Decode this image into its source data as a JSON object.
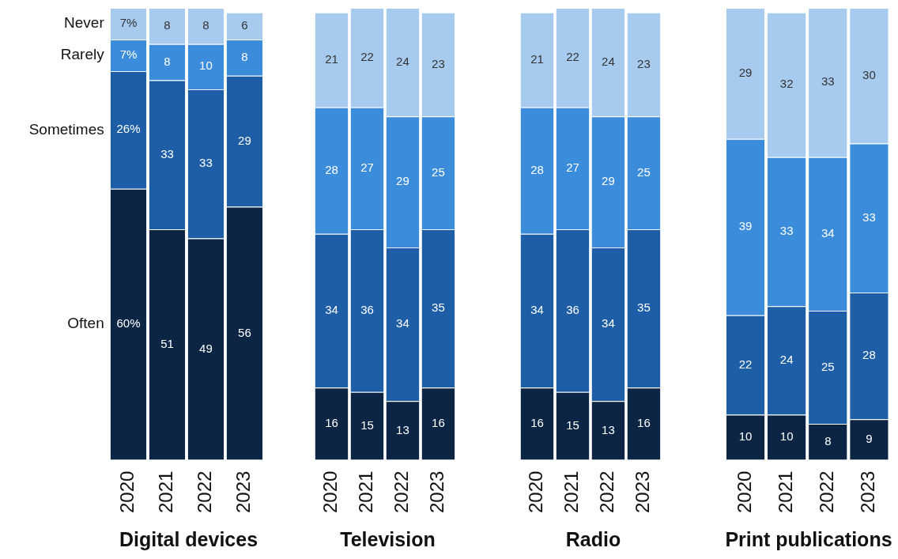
{
  "chart_data": [
    {
      "type": "bar",
      "stacked": true,
      "title": "Digital devices",
      "categories": [
        "2020",
        "2021",
        "2022",
        "2023"
      ],
      "series": [
        {
          "name": "Often",
          "color": "#0c2545",
          "values": [
            60,
            51,
            49,
            56
          ],
          "value_labels": [
            "60%",
            "51",
            "49",
            "56"
          ]
        },
        {
          "name": "Sometimes",
          "color": "#1d5ea6",
          "values": [
            26,
            33,
            33,
            29
          ],
          "value_labels": [
            "26%",
            "33",
            "33",
            "29"
          ]
        },
        {
          "name": "Rarely",
          "color": "#3b8ddb",
          "values": [
            7,
            8,
            10,
            8
          ],
          "value_labels": [
            "7%",
            "8",
            "10",
            "8"
          ]
        },
        {
          "name": "Never",
          "color": "#a6cbef",
          "values": [
            7,
            8,
            8,
            6
          ],
          "value_labels": [
            "7%",
            "8",
            "8",
            "6"
          ]
        }
      ]
    },
    {
      "type": "bar",
      "stacked": true,
      "title": "Television",
      "categories": [
        "2020",
        "2021",
        "2022",
        "2023"
      ],
      "data_labels": true,
      "series": [
        {
          "color": "#0c2545",
          "values": [
            16,
            15,
            13,
            16
          ]
        },
        {
          "color": "#1d5ea6",
          "values": [
            34,
            36,
            34,
            35
          ]
        },
        {
          "color": "#3b8ddb",
          "values": [
            28,
            27,
            29,
            25
          ]
        },
        {
          "color": "#a6cbef",
          "values": [
            21,
            22,
            24,
            23
          ]
        }
      ]
    },
    {
      "type": "bar",
      "stacked": true,
      "title": "Radio",
      "categories": [
        "2020",
        "2021",
        "2022",
        "2023"
      ],
      "data_labels": true,
      "series": [
        {
          "color": "#0c2545",
          "values": [
            16,
            15,
            13,
            16
          ]
        },
        {
          "color": "#1d5ea6",
          "values": [
            34,
            36,
            34,
            35
          ]
        },
        {
          "color": "#3b8ddb",
          "values": [
            28,
            27,
            29,
            25
          ]
        },
        {
          "color": "#a6cbef",
          "values": [
            21,
            22,
            24,
            23
          ]
        }
      ]
    },
    {
      "type": "bar",
      "stacked": true,
      "title": "Print publications",
      "categories": [
        "2020",
        "2021",
        "2022",
        "2023"
      ],
      "data_labels": true,
      "series": [
        {
          "color": "#0c2545",
          "values": [
            10,
            10,
            8,
            9
          ]
        },
        {
          "color": "#1d5ea6",
          "values": [
            22,
            24,
            25,
            28
          ]
        },
        {
          "color": "#3b8ddb",
          "values": [
            39,
            33,
            34,
            33
          ]
        },
        {
          "color": "#a6cbef",
          "values": [
            29,
            32,
            33,
            30
          ]
        }
      ]
    }
  ]
}
